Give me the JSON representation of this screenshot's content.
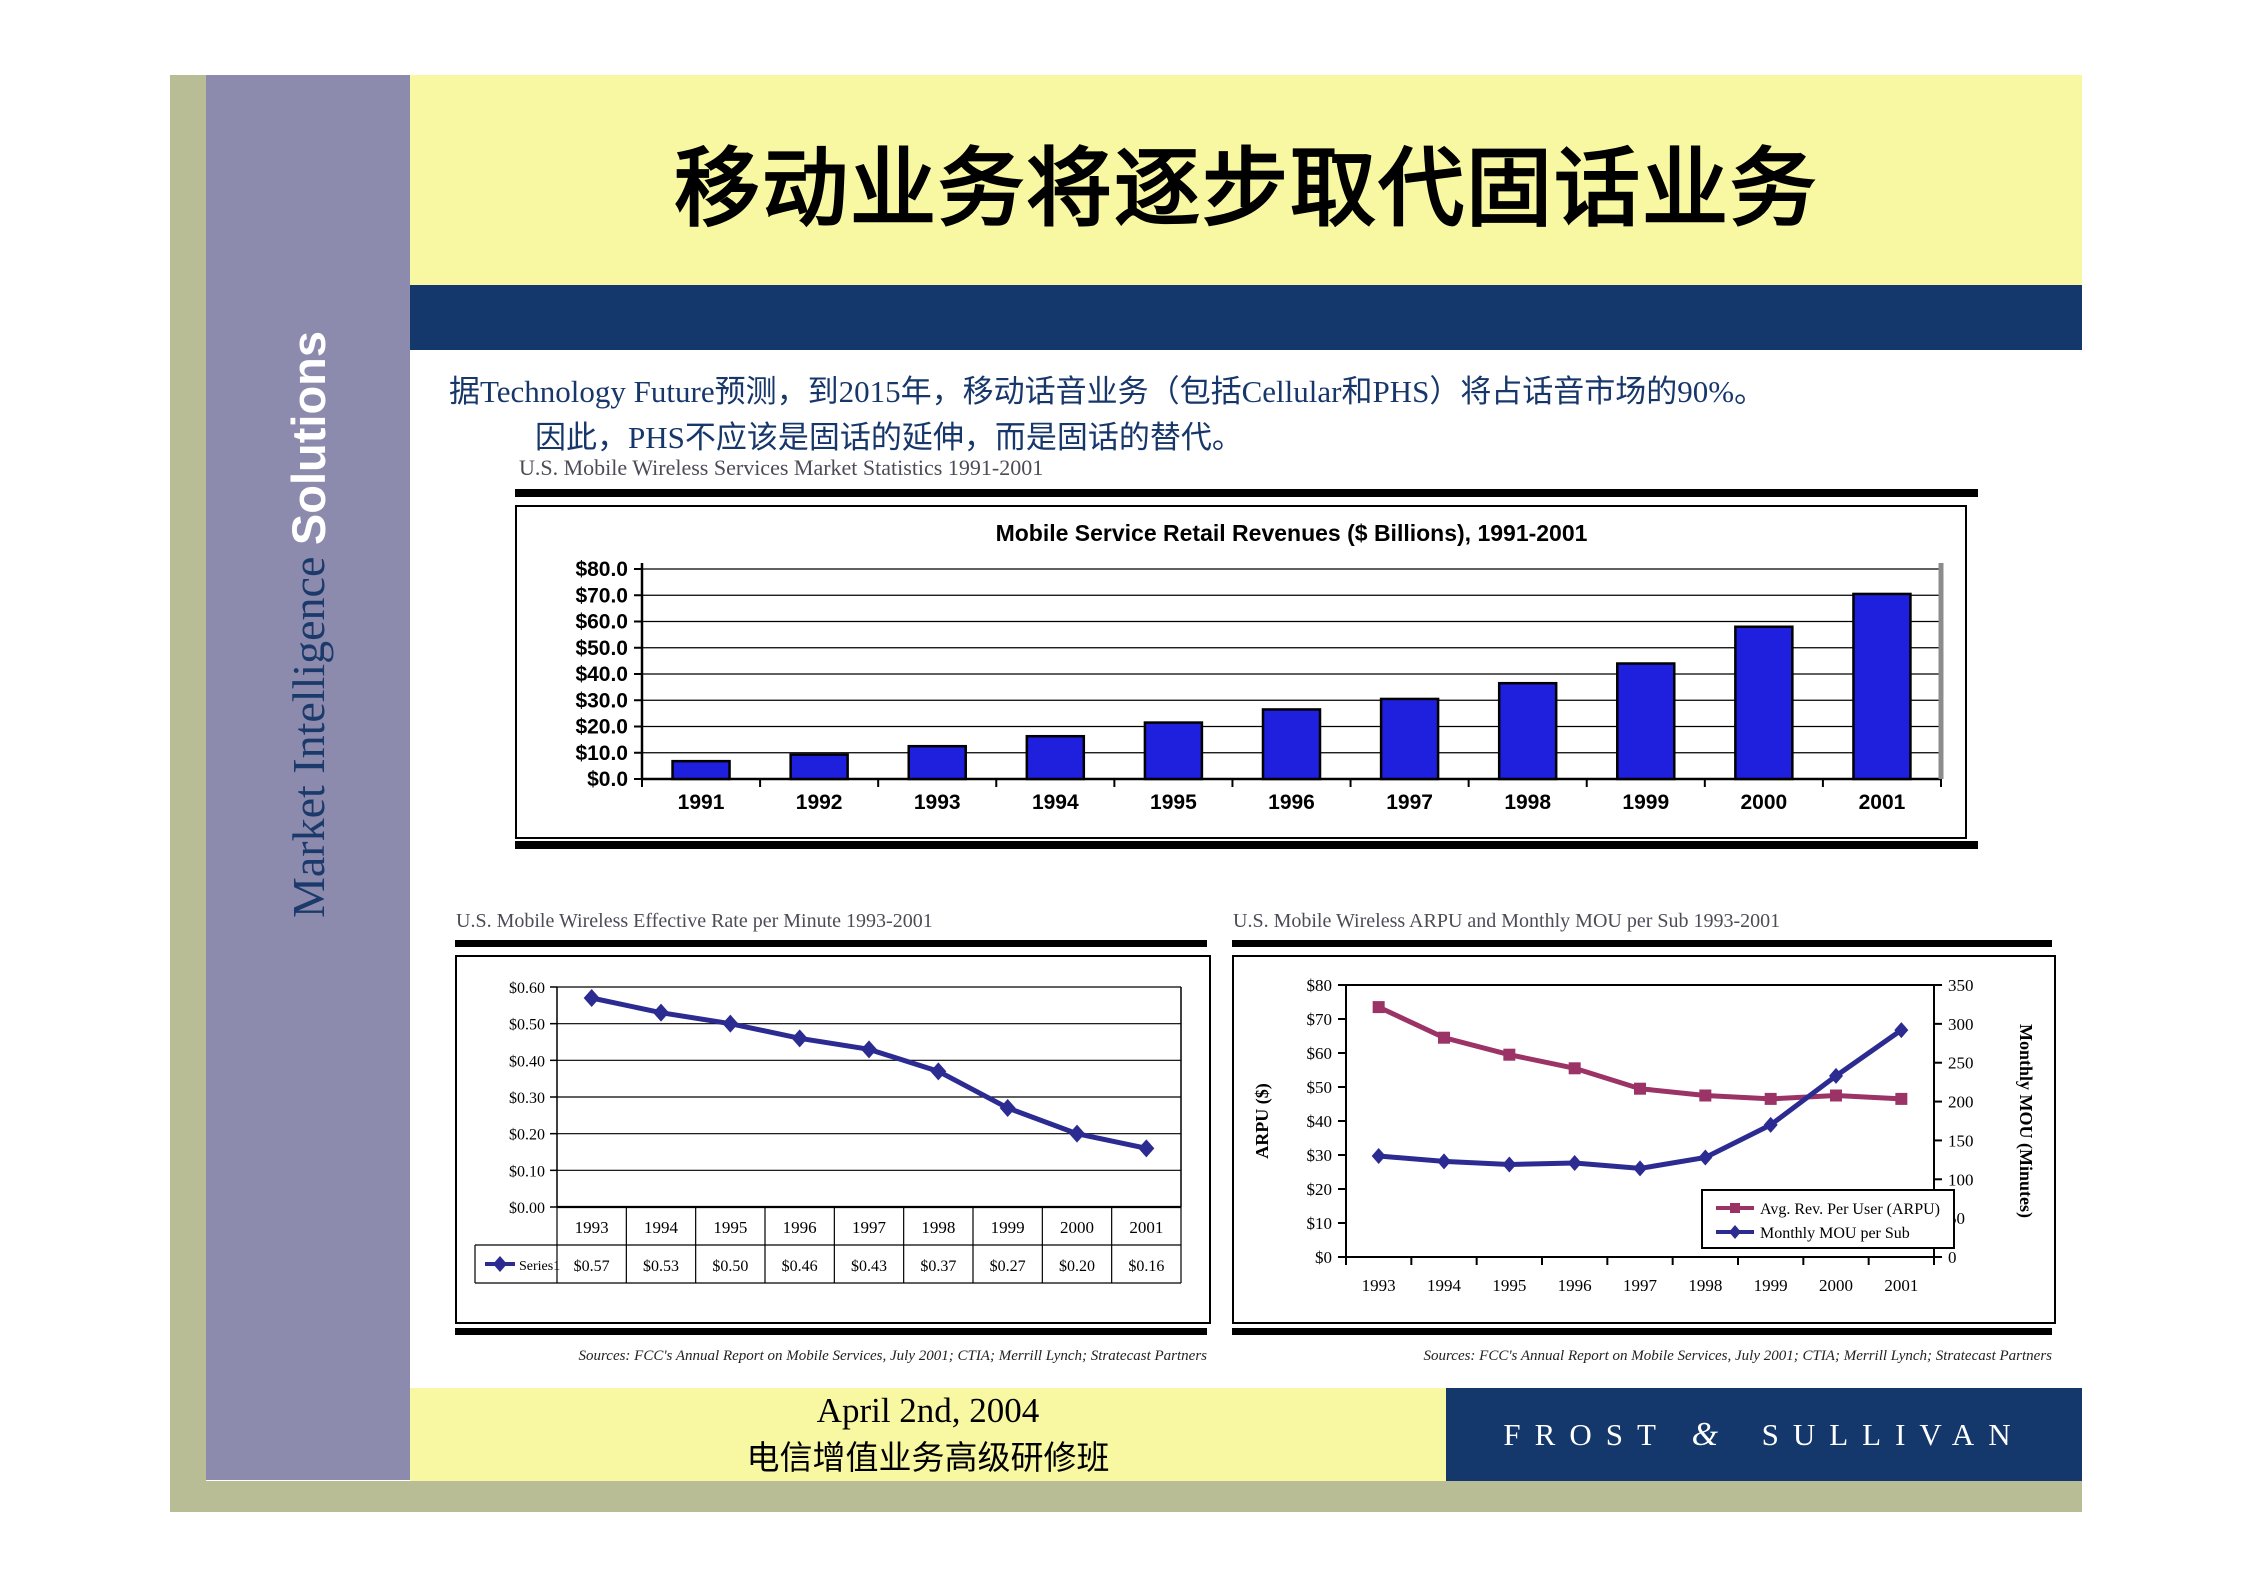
{
  "slide": {
    "sidebar": {
      "serif_part": "Market Intelligence",
      "bold_part": "Solutions"
    },
    "title": "移动业务将逐步取代固话业务",
    "body": {
      "line1": "据Technology Future预测，到2015年，移动话音业务（包括Cellular和PHS）将占话音市场的90%。",
      "line2": "因此，PHS不应该是固话的延伸，而是固话的替代。"
    },
    "footer": {
      "date": "April 2nd, 2004",
      "seminar": "电信增值业务高级研修班",
      "brand_left": "FROST",
      "brand_amp": "&",
      "brand_right": "SULLIVAN"
    }
  },
  "colors": {
    "yellow": "#f8f8a2",
    "navy": "#14386b",
    "purple": "#8d8bad",
    "olive": "#b8bd95",
    "bar_blue": "#1f1fde",
    "line_navy": "#2b2b92",
    "maroon": "#9c3366",
    "body_text": "#17376b"
  },
  "chart_data": [
    {
      "id": "revenues",
      "type": "bar",
      "heading": "U.S. Mobile Wireless Services Market Statistics 1991-2001",
      "title": "Mobile Service Retail Revenues ($ Billions), 1991-2001",
      "categories": [
        "1991",
        "1992",
        "1993",
        "1994",
        "1995",
        "1996",
        "1997",
        "1998",
        "1999",
        "2000",
        "2001"
      ],
      "values": [
        6.8,
        9.3,
        12.5,
        16.3,
        21.5,
        26.5,
        30.5,
        36.5,
        44,
        58,
        70.5
      ],
      "ylim": [
        0,
        80
      ],
      "grid": true,
      "legend": "none",
      "yticks": [
        {
          "v": 0,
          "label": "$0.0"
        },
        {
          "v": 10,
          "label": "$10.0"
        },
        {
          "v": 20,
          "label": "$20.0"
        },
        {
          "v": 30,
          "label": "$30.0"
        },
        {
          "v": 40,
          "label": "$40.0"
        },
        {
          "v": 50,
          "label": "$50.0"
        },
        {
          "v": 60,
          "label": "$60.0"
        },
        {
          "v": 70,
          "label": "$70.0"
        },
        {
          "v": 80,
          "label": "$80.0"
        }
      ],
      "bar_color": "#1f1fde"
    },
    {
      "id": "rate-per-minute",
      "type": "line-table",
      "heading": "U.S. Mobile Wireless Effective Rate per Minute 1993-2001",
      "categories": [
        "1993",
        "1994",
        "1995",
        "1996",
        "1997",
        "1998",
        "1999",
        "2000",
        "2001"
      ],
      "ylim": [
        0,
        0.6
      ],
      "grid": true,
      "yticks": [
        {
          "v": 0.0,
          "label": "$0.00"
        },
        {
          "v": 0.1,
          "label": "$0.10"
        },
        {
          "v": 0.2,
          "label": "$0.20"
        },
        {
          "v": 0.3,
          "label": "$0.30"
        },
        {
          "v": 0.4,
          "label": "$0.40"
        },
        {
          "v": 0.5,
          "label": "$0.50"
        },
        {
          "v": 0.6,
          "label": "$0.60"
        }
      ],
      "series": [
        {
          "name": "Series1",
          "marker": "diamond",
          "color": "#2b2b92",
          "values": [
            0.57,
            0.53,
            0.5,
            0.46,
            0.43,
            0.37,
            0.27,
            0.2,
            0.16
          ],
          "labels": [
            "$0.57",
            "$0.53",
            "$0.50",
            "$0.46",
            "$0.43",
            "$0.37",
            "$0.27",
            "$0.20",
            "$0.16"
          ]
        }
      ],
      "sources": "Sources: FCC's Annual Report on Mobile Services, July 2001; CTIA; Merrill Lynch; Stratecast Partners"
    },
    {
      "id": "arpu-mou",
      "type": "dual-line",
      "heading": "U.S. Mobile Wireless ARPU and Monthly MOU per Sub 1993-2001",
      "categories": [
        "1993",
        "1994",
        "1995",
        "1996",
        "1997",
        "1998",
        "1999",
        "2000",
        "2001"
      ],
      "left_axis": {
        "label": "ARPU ($)",
        "lim": [
          0,
          80
        ],
        "ticks": [
          {
            "v": 0,
            "label": "$0"
          },
          {
            "v": 10,
            "label": "$10"
          },
          {
            "v": 20,
            "label": "$20"
          },
          {
            "v": 30,
            "label": "$30"
          },
          {
            "v": 40,
            "label": "$40"
          },
          {
            "v": 50,
            "label": "$50"
          },
          {
            "v": 60,
            "label": "$60"
          },
          {
            "v": 70,
            "label": "$70"
          },
          {
            "v": 80,
            "label": "$80"
          }
        ]
      },
      "right_axis": {
        "label": "Monthly MOU (Minutes)",
        "lim": [
          0,
          350
        ],
        "ticks": [
          {
            "v": 0,
            "label": "0"
          },
          {
            "v": 50,
            "label": "50"
          },
          {
            "v": 100,
            "label": "100"
          },
          {
            "v": 150,
            "label": "150"
          },
          {
            "v": 200,
            "label": "200"
          },
          {
            "v": 250,
            "label": "250"
          },
          {
            "v": 300,
            "label": "300"
          },
          {
            "v": 350,
            "label": "350"
          }
        ]
      },
      "legend_position": "bottom-right",
      "grid": false,
      "series": [
        {
          "name": "Avg. Rev. Per User (ARPU)",
          "axis": "left",
          "marker": "square",
          "color": "#9c3366",
          "values": [
            73.5,
            64.5,
            59.5,
            55.5,
            49.5,
            47.5,
            46.5,
            47.5,
            46.5
          ]
        },
        {
          "name": "Monthly MOU per Sub",
          "axis": "right",
          "marker": "diamond",
          "color": "#2b2b92",
          "values": [
            130,
            123,
            119,
            121,
            114,
            128,
            170,
            233,
            292
          ]
        }
      ],
      "sources": "Sources: FCC's Annual Report on Mobile Services, July 2001; CTIA; Merrill Lynch; Stratecast Partners"
    }
  ]
}
